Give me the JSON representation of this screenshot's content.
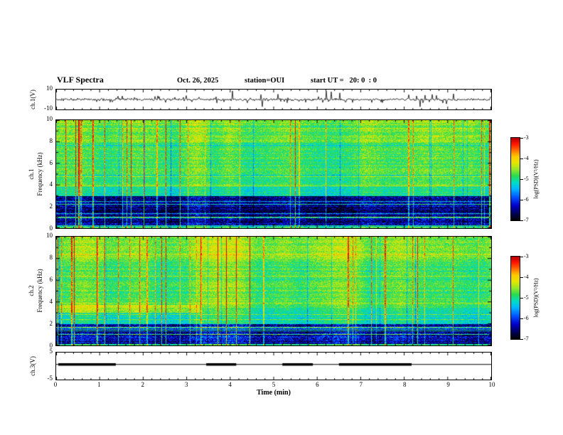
{
  "header": {
    "title": "VLF Spectra",
    "date": "Oct. 26, 2025",
    "station": "station=OUI",
    "start_ut": "start UT =   20: 0  : 0"
  },
  "x_axis": {
    "label": "Time (min)",
    "ticks": [
      "0",
      "1",
      "2",
      "3",
      "4",
      "5",
      "6",
      "7",
      "8",
      "9",
      "10"
    ]
  },
  "panels": {
    "ch1_wave": {
      "label": "ch.1(V)",
      "ymax": "10",
      "ymin": "-10"
    },
    "ch1_spec": {
      "label_channel": "ch.1",
      "label_axis": "Frequency (kHz)",
      "yticks": [
        "0",
        "2",
        "4",
        "6",
        "8",
        "10"
      ]
    },
    "ch2_spec": {
      "label_channel": "ch.2",
      "label_axis": "Frequency (kHz)",
      "yticks": [
        "0",
        "2",
        "4",
        "6",
        "8",
        "10"
      ]
    },
    "ch3_wave": {
      "label": "ch.3(V)",
      "ymax": "5",
      "ymin": "-5"
    }
  },
  "colorbar": {
    "label": "log(PSD)(V²/Hz)",
    "ticks": [
      "-3",
      "-4",
      "-5",
      "-6",
      "-7"
    ]
  },
  "chart_data": {
    "type": "heatmap",
    "title": "VLF Spectra",
    "xlabel": "Time (min)",
    "x_range": [
      0,
      10
    ],
    "panels": [
      {
        "name": "ch.1(V)",
        "type": "line",
        "ylim": [
          -10,
          10
        ],
        "content": "broadband noise waveform with dense impulsive spikes reaching ±10 V over 0–10 min"
      },
      {
        "name": "ch.1 spectrogram",
        "type": "heatmap",
        "ylabel": "Frequency (kHz)",
        "ylim": [
          0,
          10
        ],
        "zlabel": "log(PSD)(V²/Hz)",
        "zlim": [
          -7,
          -3
        ],
        "content": "dark blue/black band 0.2–3 kHz with narrowband horizontal lines, green background 3–10 kHz, dense red/yellow vertical impulsive streaks across all frequencies"
      },
      {
        "name": "ch.2 spectrogram",
        "type": "heatmap",
        "ylabel": "Frequency (kHz)",
        "ylim": [
          0,
          10
        ],
        "zlabel": "log(PSD)(V²/Hz)",
        "zlim": [
          -7,
          -3
        ],
        "content": "dark band 0.2–2 kHz, enhanced emission band near 3.5 kHz before t≈3.3 min, green background with red/yellow vertical streaks"
      },
      {
        "name": "ch.3(V)",
        "type": "line",
        "ylim": [
          -5,
          5
        ],
        "baseline": 0.6,
        "pulse_intervals_min": [
          [
            0.05,
            1.37
          ],
          [
            3.45,
            4.14
          ],
          [
            5.2,
            5.9
          ],
          [
            6.5,
            8.17
          ]
        ],
        "content": "constant level trace with thick pulse segments at listed intervals"
      }
    ],
    "render": {
      "colormap_stops": [
        {
          "v": 0.0,
          "c": "#000000"
        },
        {
          "v": 0.08,
          "c": "#000050"
        },
        {
          "v": 0.18,
          "c": "#0000c8"
        },
        {
          "v": 0.28,
          "c": "#0050ff"
        },
        {
          "v": 0.38,
          "c": "#00b4ff"
        },
        {
          "v": 0.46,
          "c": "#00dcc8"
        },
        {
          "v": 0.54,
          "c": "#28dc50"
        },
        {
          "v": 0.62,
          "c": "#96e628"
        },
        {
          "v": 0.7,
          "c": "#e6e600"
        },
        {
          "v": 0.78,
          "c": "#ffc800"
        },
        {
          "v": 0.86,
          "c": "#ff6400"
        },
        {
          "v": 0.93,
          "c": "#ff1400"
        },
        {
          "v": 1.0,
          "c": "#b40000"
        }
      ],
      "spec1": {
        "seed": 101,
        "dark_range": [
          0.18,
          3.0
        ],
        "bands": [
          [
            0,
            0.18,
            0.55
          ],
          [
            0.18,
            3.0,
            0.15
          ],
          [
            3.0,
            3.9,
            0.5
          ],
          [
            3.9,
            8.0,
            0.56
          ],
          [
            8.0,
            10.0,
            0.61
          ]
        ]
      },
      "spec2": {
        "seed": 202,
        "dark_range": [
          0.18,
          2.0
        ],
        "bands": [
          [
            0,
            0.18,
            0.55
          ],
          [
            0.18,
            2.0,
            0.18
          ],
          [
            2.0,
            3.5,
            0.48
          ],
          [
            3.5,
            8.0,
            0.56
          ],
          [
            8.0,
            10.0,
            0.61
          ]
        ],
        "stripe": {
          "t0": 0,
          "t1": 3.3,
          "f0": 3.05,
          "f1": 3.75,
          "dv": 0.13
        }
      },
      "wave1": {
        "seed": 303,
        "spike_prob": 0.08
      },
      "wave3": {
        "seed": 404
      }
    }
  }
}
